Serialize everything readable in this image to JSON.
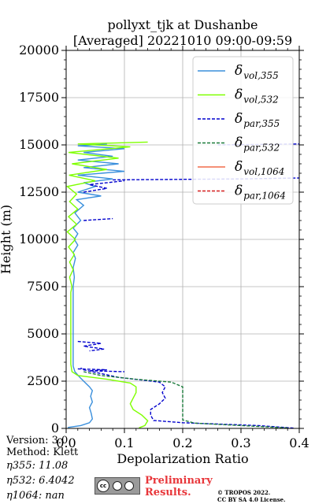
{
  "header": {
    "title_line1": "pollyxt_tjk at Dushanbe",
    "title_line2": "[Averaged] 20221010 09:00-09:59"
  },
  "footer": {
    "version": "Version: 3.0",
    "method": "Method: Klett",
    "eta355": "η355:  11.08",
    "eta532": "η532: 6.4042",
    "eta1064": "η1064:    nan",
    "license_badge": "cc by sa",
    "preliminary_1": "Preliminary",
    "preliminary_2": "Results.",
    "copyright_1": "© TROPOS 2022.",
    "copyright_2": "CC BY SA 4.0 License."
  },
  "colors": {
    "vol355": "#3a8fdc",
    "vol532": "#7fff00",
    "par355": "#0000cd",
    "par532": "#1a7a3a",
    "vol1064": "#f26b4a",
    "par1064": "#d62020"
  },
  "chart_data": {
    "type": "line",
    "xlabel": "Depolarization Ratio",
    "ylabel": "Height (m)",
    "xlim": [
      0,
      0.4
    ],
    "ylim": [
      0,
      20000
    ],
    "x_ticks": [
      0.0,
      0.1,
      0.2,
      0.3,
      0.4
    ],
    "x_tick_labels": [
      "0.0",
      "0.1",
      "0.2",
      "0.3",
      "0.4"
    ],
    "y_ticks": [
      0,
      2500,
      5000,
      7500,
      10000,
      12500,
      15000,
      17500,
      20000
    ],
    "y_tick_labels": [
      "0",
      "2500",
      "5000",
      "7500",
      "10000",
      "12500",
      "15000",
      "17500",
      "20000"
    ],
    "grid": true,
    "legend_position": "top-right",
    "series": [
      {
        "name": "δ_{vol,355}",
        "label_main": "δ",
        "label_sub": "vol,355",
        "color_key": "vol355",
        "style": "solid",
        "points": [
          [
            0.003,
            50
          ],
          [
            0.025,
            150
          ],
          [
            0.04,
            300
          ],
          [
            0.045,
            500
          ],
          [
            0.043,
            800
          ],
          [
            0.04,
            1100
          ],
          [
            0.045,
            1400
          ],
          [
            0.042,
            1700
          ],
          [
            0.045,
            2000
          ],
          [
            0.04,
            2200
          ],
          [
            0.03,
            2500
          ],
          [
            0.022,
            2750
          ],
          [
            0.015,
            3000
          ],
          [
            0.012,
            3300
          ],
          [
            0.012,
            4000
          ],
          [
            0.012,
            5000
          ],
          [
            0.012,
            6000
          ],
          [
            0.012,
            7000
          ],
          [
            0.012,
            7500
          ],
          [
            0.014,
            8000
          ],
          [
            0.012,
            8500
          ],
          [
            0.016,
            9000
          ],
          [
            0.012,
            9300
          ],
          [
            0.02,
            9700
          ],
          [
            0.014,
            10000
          ],
          [
            0.02,
            10300
          ],
          [
            0.012,
            10600
          ],
          [
            0.025,
            11000
          ],
          [
            0.015,
            11400
          ],
          [
            0.03,
            11800
          ],
          [
            0.018,
            12100
          ],
          [
            0.06,
            12300
          ],
          [
            0.02,
            12500
          ],
          [
            0.05,
            12800
          ],
          [
            0.03,
            13000
          ],
          [
            0.08,
            13200
          ],
          [
            0.02,
            13400
          ],
          [
            0.1,
            13600
          ],
          [
            0.03,
            13800
          ],
          [
            0.09,
            14000
          ],
          [
            0.02,
            14200
          ],
          [
            0.08,
            14400
          ],
          [
            0.03,
            14600
          ],
          [
            0.1,
            14800
          ],
          [
            0.02,
            14950
          ],
          [
            0.07,
            15050
          ]
        ]
      },
      {
        "name": "δ_{vol,532}",
        "label_main": "δ",
        "label_sub": "vol,532",
        "color_key": "vol532",
        "style": "solid",
        "points": [
          [
            0.125,
            30
          ],
          [
            0.135,
            150
          ],
          [
            0.14,
            400
          ],
          [
            0.13,
            700
          ],
          [
            0.115,
            1000
          ],
          [
            0.11,
            1300
          ],
          [
            0.115,
            1600
          ],
          [
            0.12,
            1900
          ],
          [
            0.12,
            2200
          ],
          [
            0.11,
            2400
          ],
          [
            0.07,
            2600
          ],
          [
            0.02,
            2800
          ],
          [
            0.01,
            3000
          ],
          [
            0.008,
            3400
          ],
          [
            0.008,
            4000
          ],
          [
            0.008,
            4800
          ],
          [
            0.008,
            5500
          ],
          [
            0.008,
            6500
          ],
          [
            0.008,
            7200
          ],
          [
            0.01,
            7500
          ],
          [
            0.006,
            8000
          ],
          [
            0.012,
            8400
          ],
          [
            0.006,
            8800
          ],
          [
            0.014,
            9200
          ],
          [
            0.004,
            9600
          ],
          [
            0.016,
            10000
          ],
          [
            0.002,
            10400
          ],
          [
            0.018,
            10800
          ],
          [
            0.004,
            11200
          ],
          [
            0.02,
            11600
          ],
          [
            0.006,
            12000
          ],
          [
            0.018,
            12400
          ],
          [
            0.002,
            12800
          ],
          [
            0.05,
            13100
          ],
          [
            0.005,
            13400
          ],
          [
            0.07,
            13700
          ],
          [
            0.01,
            14000
          ],
          [
            0.09,
            14300
          ],
          [
            0.004,
            14600
          ],
          [
            0.11,
            14900
          ],
          [
            0.02,
            15050
          ],
          [
            0.14,
            15150
          ]
        ]
      },
      {
        "name": "δ_{par,355}",
        "label_main": "δ",
        "label_sub": "par,355",
        "color_key": "par355",
        "style": "dashed",
        "points": [
          [
            0.39,
            15
          ],
          [
            0.33,
            150
          ],
          [
            0.2,
            300
          ],
          [
            0.15,
            420
          ],
          [
            0.145,
            700
          ],
          [
            0.145,
            1000
          ],
          [
            0.16,
            1300
          ],
          [
            0.17,
            1600
          ],
          [
            0.165,
            1900
          ],
          [
            0.17,
            2200
          ],
          [
            0.16,
            2450
          ],
          [
            0.09,
            2700
          ],
          [
            0.06,
            2900
          ],
          [
            0.03,
            3100
          ],
          [
            0.025,
            3200
          ]
        ]
      },
      {
        "name": "δ_{par,532}",
        "label_main": "δ",
        "label_sub": "par,532",
        "color_key": "par532",
        "style": "dashed",
        "points": [
          [
            0.38,
            25
          ],
          [
            0.3,
            150
          ],
          [
            0.22,
            280
          ],
          [
            0.2,
            450
          ],
          [
            0.2,
            800
          ],
          [
            0.2,
            1200
          ],
          [
            0.2,
            1600
          ],
          [
            0.2,
            2000
          ],
          [
            0.2,
            2200
          ],
          [
            0.18,
            2450
          ],
          [
            0.12,
            2600
          ],
          [
            0.06,
            2800
          ],
          [
            0.03,
            3000
          ]
        ]
      },
      {
        "name": "δ_{vol,1064}",
        "label_main": "δ",
        "label_sub": "vol,1064",
        "color_key": "vol1064",
        "style": "solid",
        "points": []
      },
      {
        "name": "δ_{par,1064}",
        "label_main": "δ",
        "label_sub": "par,1064",
        "color_key": "par1064",
        "style": "dashed",
        "points": []
      }
    ],
    "extra_segments": [
      {
        "color_key": "par355",
        "style": "dashed",
        "points": [
          [
            0.02,
            4600
          ],
          [
            0.06,
            4500
          ],
          [
            0.03,
            4350
          ],
          [
            0.065,
            4200
          ],
          [
            0.04,
            4100
          ]
        ]
      },
      {
        "color_key": "par355",
        "style": "dashed",
        "points": [
          [
            0.02,
            3150
          ],
          [
            0.07,
            3100
          ],
          [
            0.04,
            3050
          ],
          [
            0.1,
            3000
          ]
        ]
      },
      {
        "color_key": "par355",
        "style": "dashed",
        "points": [
          [
            0.03,
            11000
          ],
          [
            0.08,
            11100
          ]
        ]
      },
      {
        "color_key": "par355",
        "style": "dashed",
        "points": [
          [
            0.08,
            13150
          ],
          [
            0.3,
            13200
          ],
          [
            0.4,
            13250
          ]
        ]
      },
      {
        "color_key": "par355",
        "style": "dashed",
        "points": [
          [
            0.26,
            15000
          ],
          [
            0.4,
            15050
          ]
        ]
      },
      {
        "color_key": "par355",
        "style": "dashed",
        "points": [
          [
            0.03,
            12500
          ],
          [
            0.07,
            12700
          ],
          [
            0.04,
            12900
          ],
          [
            0.1,
            13100
          ]
        ]
      }
    ]
  }
}
